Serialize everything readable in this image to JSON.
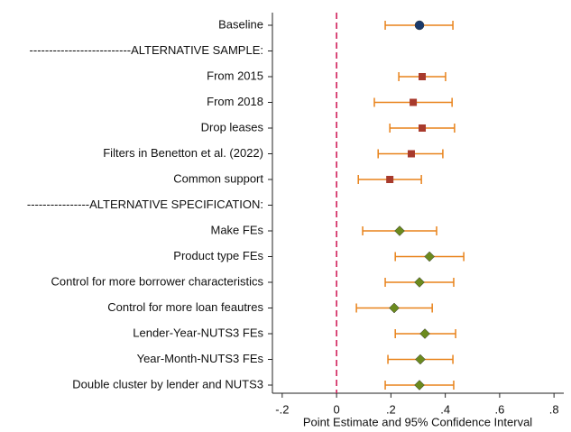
{
  "chart_data": {
    "type": "coefplot",
    "xlabel": "Point Estimate and 95% Confidence Interval",
    "categories": [
      "Baseline",
      "--------------------------ALTERNATIVE SAMPLE:",
      "From 2015",
      "From 2018",
      "Drop leases",
      "Filters in Benetton et al. (2022)",
      "Common support",
      "----------------ALTERNATIVE SPECIFICATION:",
      "Make FEs",
      "Product type FEs",
      "Control for more borrower characteristics",
      "Control for more loan feautres",
      "Lender-Year-NUTS3 FEs",
      "Year-Month-NUTS3 FEs",
      "Double cluster by lender and NUTS3"
    ],
    "series": [
      {
        "marker": "circle",
        "color": "#1a3a6b",
        "values": [
          0.305,
          null,
          null,
          null,
          null,
          null,
          null,
          null,
          null,
          null,
          null,
          null,
          null,
          null,
          null
        ],
        "lower": [
          0.179,
          null,
          null,
          null,
          null,
          null,
          null,
          null,
          null,
          null,
          null,
          null,
          null,
          null,
          null
        ],
        "upper": [
          0.428,
          null,
          null,
          null,
          null,
          null,
          null,
          null,
          null,
          null,
          null,
          null,
          null,
          null,
          null
        ]
      },
      {
        "marker": "square",
        "color": "#a83a2c",
        "values": [
          null,
          null,
          0.315,
          0.282,
          0.315,
          0.275,
          0.196,
          null,
          null,
          null,
          null,
          null,
          null,
          null,
          null
        ],
        "lower": [
          null,
          null,
          0.229,
          0.139,
          0.196,
          0.153,
          0.08,
          null,
          null,
          null,
          null,
          null,
          null,
          null,
          null
        ],
        "upper": [
          null,
          null,
          0.401,
          0.425,
          0.434,
          0.391,
          0.312,
          null,
          null,
          null,
          null,
          null,
          null,
          null,
          null
        ]
      },
      {
        "marker": "diamond",
        "color": "#6b8a1e",
        "values": [
          null,
          null,
          null,
          null,
          null,
          null,
          null,
          null,
          0.232,
          0.342,
          0.305,
          0.212,
          0.325,
          0.308,
          0.305
        ],
        "lower": [
          null,
          null,
          null,
          null,
          null,
          null,
          null,
          null,
          0.096,
          0.216,
          0.179,
          0.073,
          0.216,
          0.189,
          0.179
        ],
        "upper": [
          null,
          null,
          null,
          null,
          null,
          null,
          null,
          null,
          0.368,
          0.468,
          0.431,
          0.352,
          0.438,
          0.428,
          0.431
        ]
      }
    ],
    "ci_color": "#e8821a",
    "reference_line": 0,
    "reference_color": "#d0205a",
    "xlim": [
      -0.236,
      0.836
    ],
    "xticks": [
      {
        "value": -0.2,
        "label": "-.2"
      },
      0,
      {
        "value": 0.2,
        "label": ".2"
      },
      {
        "value": 0.4,
        "label": ".4"
      },
      {
        "value": 0.6,
        "label": ".6"
      },
      {
        "value": 0.8,
        "label": ".8"
      }
    ]
  }
}
